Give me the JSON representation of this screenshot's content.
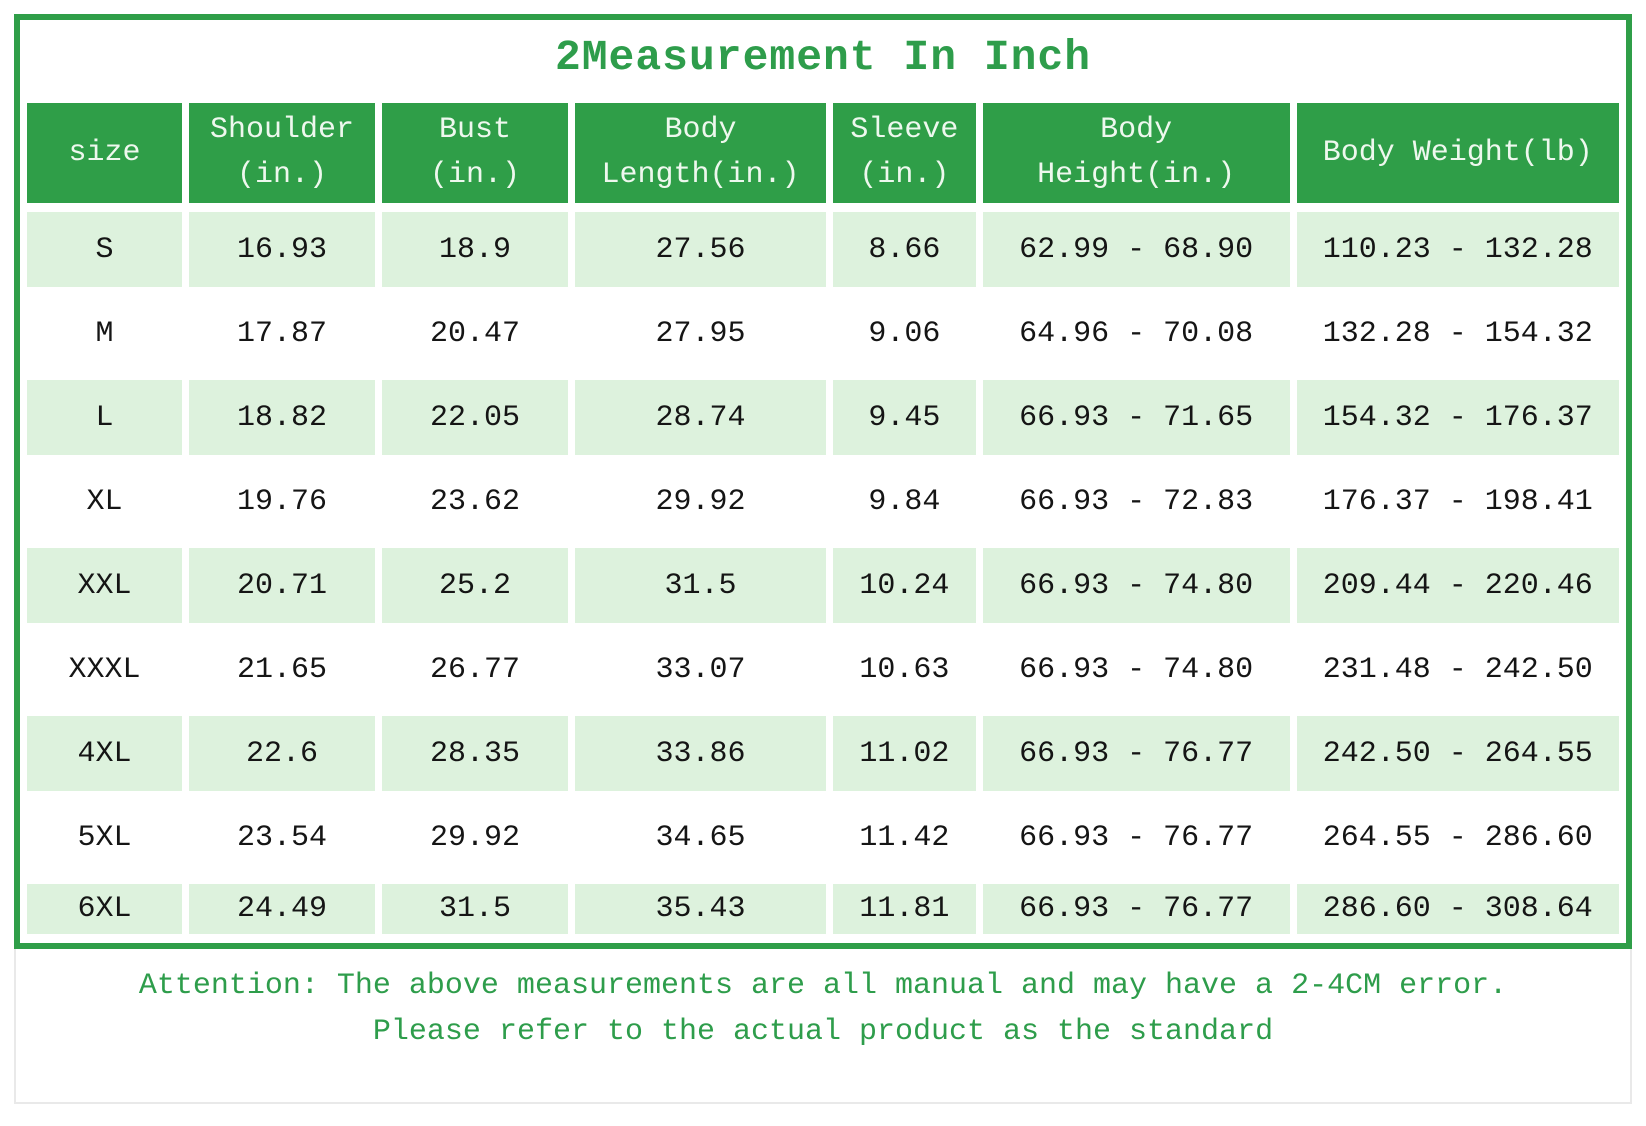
{
  "title": "2Measurement In Inch",
  "table": {
    "columns": [
      {
        "line1": "size",
        "line2": ""
      },
      {
        "line1": "Shoulder",
        "line2": "(in.)"
      },
      {
        "line1": "Bust",
        "line2": "(in.)"
      },
      {
        "line1": "Body",
        "line2": "Length(in.)"
      },
      {
        "line1": "Sleeve",
        "line2": "(in.)"
      },
      {
        "line1": "Body",
        "line2": "Height(in.)"
      },
      {
        "line1": "Body Weight(lb)",
        "line2": ""
      }
    ],
    "rows": [
      [
        "S",
        "16.93",
        "18.9",
        "27.56",
        "8.66",
        "62.99 - 68.90",
        "110.23 - 132.28"
      ],
      [
        "M",
        "17.87",
        "20.47",
        "27.95",
        "9.06",
        "64.96 - 70.08",
        "132.28 - 154.32"
      ],
      [
        "L",
        "18.82",
        "22.05",
        "28.74",
        "9.45",
        "66.93 - 71.65",
        "154.32 - 176.37"
      ],
      [
        "XL",
        "19.76",
        "23.62",
        "29.92",
        "9.84",
        "66.93 - 72.83",
        "176.37 - 198.41"
      ],
      [
        "XXL",
        "20.71",
        "25.2",
        "31.5",
        "10.24",
        "66.93 - 74.80",
        "209.44 - 220.46"
      ],
      [
        "XXXL",
        "21.65",
        "26.77",
        "33.07",
        "10.63",
        "66.93 - 74.80",
        "231.48 - 242.50"
      ],
      [
        "4XL",
        "22.6",
        "28.35",
        "33.86",
        "11.02",
        "66.93 - 76.77",
        "242.50 - 264.55"
      ],
      [
        "5XL",
        "23.54",
        "29.92",
        "34.65",
        "11.42",
        "66.93 - 76.77",
        "264.55 - 286.60"
      ],
      [
        "6XL",
        "24.49",
        "31.5",
        "35.43",
        "11.81",
        "66.93 - 76.77",
        "286.60 - 308.64"
      ]
    ]
  },
  "footer": {
    "line1": "Attention: The above measurements are all manual and may have a 2-4CM error.",
    "line2": "Please refer to the actual product as the standard"
  },
  "colors": {
    "accent_green": "#2f9e48",
    "row_light_green": "#ddf2dd",
    "header_text": "#eef8ee",
    "note_text": "#2e9d4b"
  }
}
